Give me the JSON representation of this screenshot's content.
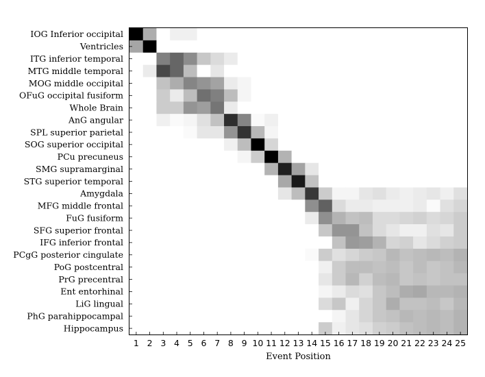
{
  "chart_data": {
    "type": "heatmap",
    "xlabel": "Event Position",
    "ylabel": "",
    "title": "",
    "x": [
      "1",
      "2",
      "3",
      "4",
      "5",
      "6",
      "7",
      "8",
      "9",
      "10",
      "11",
      "12",
      "13",
      "14",
      "15",
      "16",
      "17",
      "18",
      "19",
      "20",
      "21",
      "22",
      "23",
      "24",
      "25"
    ],
    "rows": [
      "IOG Inferior occipital",
      "Ventricles",
      "ITG inferior temporal",
      "MTG middle temporal",
      "MOG middle occipital",
      "OFuG occipital fusiform",
      "Whole Brain",
      "AnG angular",
      "SPL superior parietal",
      "SOG superior occipital",
      "PCu precuneus",
      "SMG supramarginal",
      "STG superior temporal",
      "Amygdala",
      "MFG middle frontal",
      "FuG fusiform",
      "SFG superior frontal",
      "IFG inferior frontal",
      "PCgG posterior cingulate",
      "PoG postcentral",
      "PrG precentral",
      "Ent entorhinal",
      "LiG lingual",
      "PhG parahippocampal",
      "Hippocampus"
    ],
    "values": [
      [
        1.0,
        0.32,
        0,
        0.06,
        0.06,
        0,
        0,
        0,
        0,
        0,
        0,
        0,
        0,
        0,
        0,
        0,
        0,
        0,
        0,
        0,
        0,
        0,
        0,
        0,
        0
      ],
      [
        0.35,
        1.0,
        0,
        0,
        0,
        0,
        0,
        0,
        0,
        0,
        0,
        0,
        0,
        0,
        0,
        0,
        0,
        0,
        0,
        0,
        0,
        0,
        0,
        0,
        0
      ],
      [
        0,
        0,
        0.5,
        0.6,
        0.45,
        0.22,
        0.14,
        0.08,
        0,
        0,
        0,
        0,
        0,
        0,
        0,
        0,
        0,
        0,
        0,
        0,
        0,
        0,
        0,
        0,
        0
      ],
      [
        0,
        0.08,
        0.72,
        0.6,
        0.26,
        0,
        0.1,
        0,
        0,
        0,
        0,
        0,
        0,
        0,
        0,
        0,
        0,
        0,
        0,
        0,
        0,
        0,
        0,
        0,
        0
      ],
      [
        0,
        0,
        0.24,
        0.32,
        0.48,
        0.42,
        0.36,
        0.08,
        0.04,
        0,
        0,
        0,
        0,
        0,
        0,
        0,
        0,
        0,
        0,
        0,
        0,
        0,
        0,
        0,
        0
      ],
      [
        0,
        0,
        0.2,
        0.08,
        0.26,
        0.56,
        0.5,
        0.26,
        0.04,
        0,
        0,
        0,
        0,
        0,
        0,
        0,
        0,
        0,
        0,
        0,
        0,
        0,
        0,
        0,
        0
      ],
      [
        0,
        0,
        0.2,
        0.2,
        0.42,
        0.38,
        0.54,
        0.08,
        0,
        0,
        0,
        0,
        0,
        0,
        0,
        0,
        0,
        0,
        0,
        0,
        0,
        0,
        0,
        0,
        0
      ],
      [
        0,
        0,
        0.06,
        0.02,
        0.04,
        0.12,
        0.24,
        0.82,
        0.48,
        0.02,
        0.06,
        0,
        0,
        0,
        0,
        0,
        0,
        0,
        0,
        0,
        0,
        0,
        0,
        0,
        0
      ],
      [
        0,
        0,
        0,
        0,
        0.02,
        0.1,
        0.1,
        0.42,
        0.8,
        0.28,
        0.04,
        0,
        0,
        0,
        0,
        0,
        0,
        0,
        0,
        0,
        0,
        0,
        0,
        0,
        0
      ],
      [
        0,
        0,
        0,
        0,
        0,
        0,
        0,
        0.06,
        0.26,
        1.0,
        0.16,
        0,
        0,
        0,
        0,
        0,
        0,
        0,
        0,
        0,
        0,
        0,
        0,
        0,
        0
      ],
      [
        0,
        0,
        0,
        0,
        0,
        0,
        0,
        0,
        0.04,
        0.2,
        1.0,
        0.3,
        0,
        0,
        0,
        0,
        0,
        0,
        0,
        0,
        0,
        0,
        0,
        0,
        0
      ],
      [
        0,
        0,
        0,
        0,
        0,
        0,
        0,
        0,
        0,
        0,
        0.3,
        0.88,
        0.36,
        0.1,
        0,
        0,
        0,
        0,
        0,
        0,
        0,
        0,
        0,
        0,
        0
      ],
      [
        0,
        0,
        0,
        0,
        0,
        0,
        0,
        0,
        0,
        0,
        0,
        0.34,
        0.9,
        0.24,
        0,
        0,
        0,
        0,
        0,
        0,
        0,
        0,
        0,
        0,
        0
      ],
      [
        0,
        0,
        0,
        0,
        0,
        0,
        0,
        0,
        0,
        0,
        0,
        0.1,
        0.26,
        0.78,
        0.2,
        0.04,
        0.04,
        0.1,
        0.12,
        0.08,
        0.06,
        0.08,
        0.1,
        0.06,
        0.12
      ],
      [
        0,
        0,
        0,
        0,
        0,
        0,
        0,
        0,
        0,
        0,
        0,
        0,
        0,
        0.44,
        0.62,
        0.14,
        0.08,
        0.08,
        0.06,
        0.06,
        0.06,
        0.08,
        0.02,
        0.12,
        0.16
      ],
      [
        0,
        0,
        0,
        0,
        0,
        0,
        0,
        0,
        0,
        0,
        0,
        0,
        0,
        0.08,
        0.44,
        0.3,
        0.24,
        0.26,
        0.14,
        0.14,
        0.16,
        0.18,
        0.14,
        0.16,
        0.2
      ],
      [
        0,
        0,
        0,
        0,
        0,
        0,
        0,
        0,
        0,
        0,
        0,
        0,
        0,
        0,
        0.22,
        0.42,
        0.42,
        0.24,
        0.14,
        0.1,
        0.06,
        0.06,
        0.12,
        0.1,
        0.2
      ],
      [
        0,
        0,
        0,
        0,
        0,
        0,
        0,
        0,
        0,
        0,
        0,
        0,
        0,
        0,
        0,
        0.24,
        0.4,
        0.38,
        0.3,
        0.16,
        0.18,
        0.1,
        0.14,
        0.18,
        0.2
      ],
      [
        0,
        0,
        0,
        0,
        0,
        0,
        0,
        0,
        0,
        0,
        0,
        0,
        0,
        0.02,
        0.2,
        0.12,
        0.16,
        0.2,
        0.22,
        0.28,
        0.24,
        0.26,
        0.28,
        0.26,
        0.3
      ],
      [
        0,
        0,
        0,
        0,
        0,
        0,
        0,
        0,
        0,
        0,
        0,
        0,
        0,
        0,
        0.06,
        0.2,
        0.26,
        0.26,
        0.24,
        0.26,
        0.22,
        0.26,
        0.22,
        0.24,
        0.28
      ],
      [
        0,
        0,
        0,
        0,
        0,
        0,
        0,
        0,
        0,
        0,
        0,
        0,
        0,
        0,
        0.1,
        0.2,
        0.28,
        0.18,
        0.26,
        0.28,
        0.22,
        0.24,
        0.22,
        0.24,
        0.24
      ],
      [
        0,
        0,
        0,
        0,
        0,
        0,
        0,
        0,
        0,
        0,
        0,
        0,
        0,
        0,
        0.04,
        0.08,
        0.14,
        0.12,
        0.22,
        0.26,
        0.32,
        0.34,
        0.28,
        0.28,
        0.3
      ],
      [
        0,
        0,
        0,
        0,
        0,
        0,
        0,
        0,
        0,
        0,
        0,
        0,
        0,
        0,
        0.14,
        0.22,
        0.06,
        0.16,
        0.22,
        0.32,
        0.24,
        0.24,
        0.26,
        0.22,
        0.28
      ],
      [
        0,
        0,
        0,
        0,
        0,
        0,
        0,
        0,
        0,
        0,
        0,
        0,
        0,
        0,
        0,
        0.04,
        0.1,
        0.16,
        0.22,
        0.24,
        0.28,
        0.26,
        0.28,
        0.26,
        0.3
      ],
      [
        0,
        0,
        0,
        0,
        0,
        0,
        0,
        0,
        0,
        0,
        0,
        0,
        0,
        0,
        0.2,
        0.06,
        0.1,
        0.12,
        0.18,
        0.2,
        0.24,
        0.26,
        0.28,
        0.26,
        0.3
      ]
    ],
    "colormap": "white-to-black",
    "vmin": 0,
    "vmax": 1,
    "grid": false,
    "colors": {
      "low": "#ffffff",
      "high": "#000000",
      "frame": "#000000"
    }
  }
}
